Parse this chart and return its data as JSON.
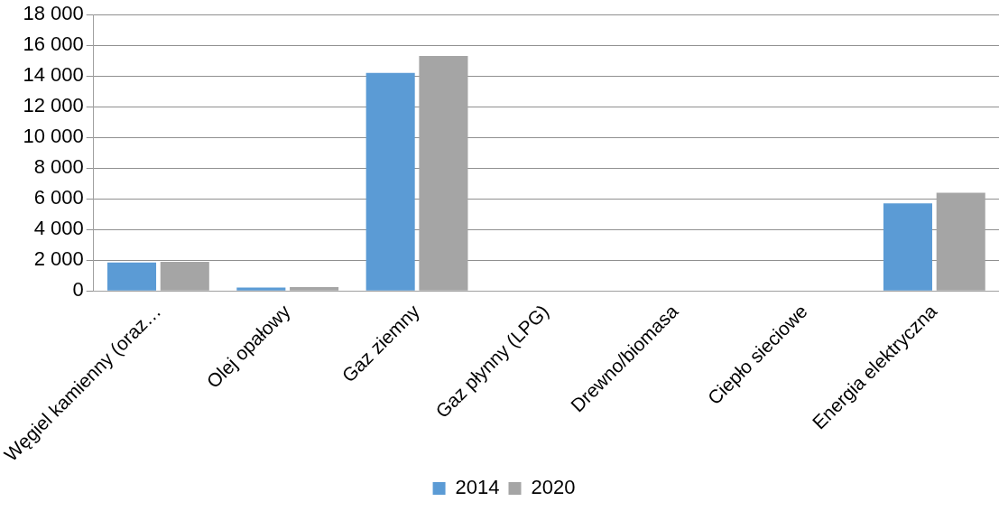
{
  "chart_data": {
    "type": "bar",
    "categories": [
      "Węgiel kamienny (oraz…",
      "Olej opałowy",
      "Gaz ziemny",
      "Gaz płynny (LPG)",
      "Drewno/biomasa",
      "Ciepło sieciowe",
      "Energia elektryczna"
    ],
    "series": [
      {
        "name": "2014",
        "color": "#5b9bd5",
        "values": [
          1850,
          230,
          14200,
          0,
          0,
          0,
          5700
        ]
      },
      {
        "name": "2020",
        "color": "#a5a5a5",
        "values": [
          1900,
          250,
          15300,
          0,
          0,
          0,
          6400
        ]
      }
    ],
    "ylim": [
      0,
      18000
    ],
    "yticks": [
      {
        "value": 0,
        "label": "0"
      },
      {
        "value": 2000,
        "label": "2 000"
      },
      {
        "value": 4000,
        "label": "4 000"
      },
      {
        "value": 6000,
        "label": "6 000"
      },
      {
        "value": 8000,
        "label": "8 000"
      },
      {
        "value": 10000,
        "label": "10 000"
      },
      {
        "value": 12000,
        "label": "12 000"
      },
      {
        "value": 14000,
        "label": "14 000"
      },
      {
        "value": 16000,
        "label": "16 000"
      },
      {
        "value": 18000,
        "label": "18 000"
      }
    ],
    "grid": "y",
    "legend": "bottom"
  }
}
